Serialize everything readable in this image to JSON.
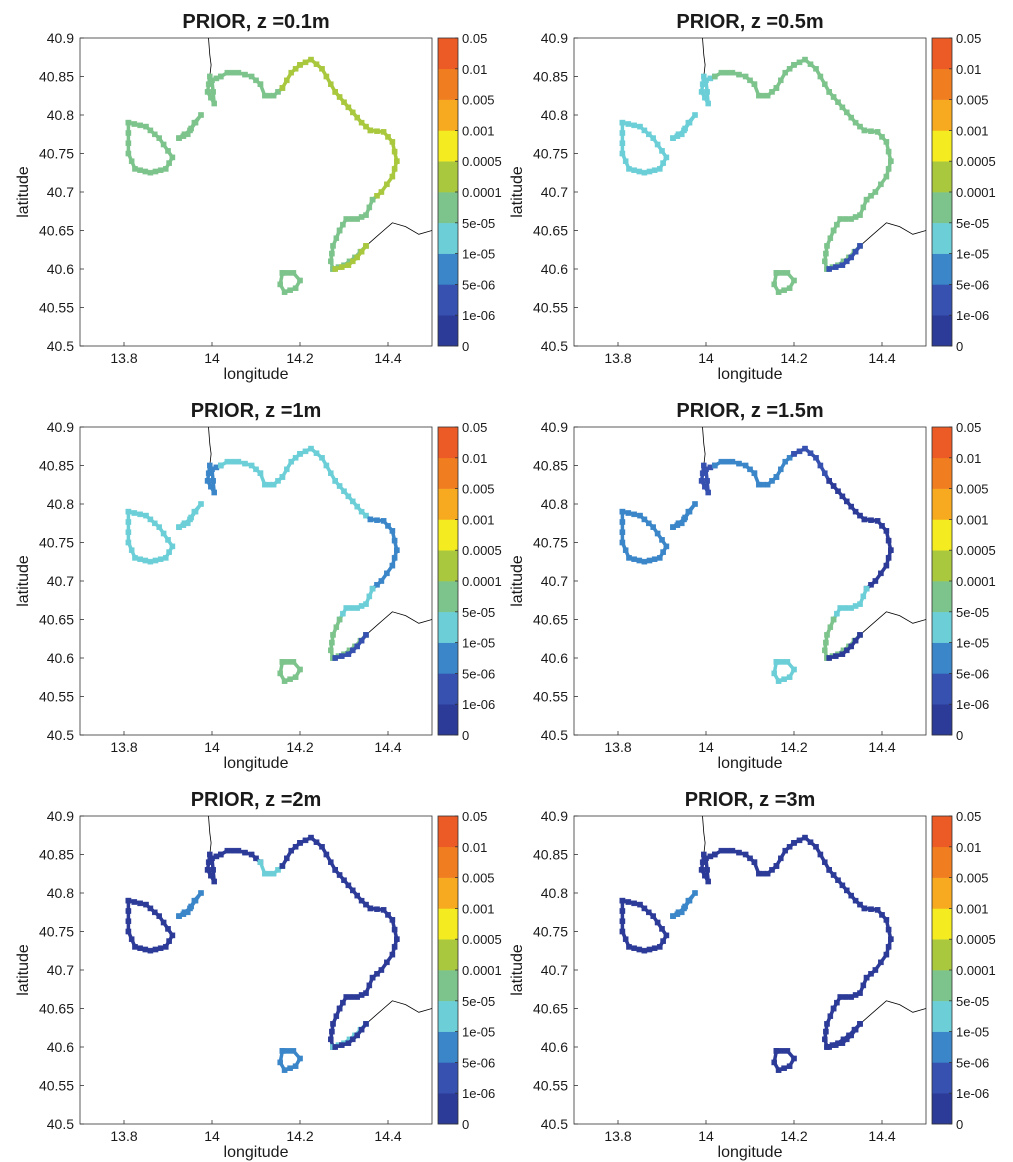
{
  "figure": {
    "colorbar_levels": [
      "0",
      "1e-06",
      "5e-06",
      "1e-05",
      "5e-05",
      "0.0001",
      "0.0005",
      "0.001",
      "0.005",
      "0.01",
      "0.05"
    ],
    "colorbar_colors": [
      "#2c3a98",
      "#3651b0",
      "#3a86c9",
      "#6ccfd8",
      "#7dc48c",
      "#a9c83e",
      "#f4ec21",
      "#f7a91f",
      "#f07e20",
      "#ec5a26"
    ]
  },
  "chart_data": [
    {
      "type": "scatter",
      "title": "PRIOR, z =0.1m",
      "xlabel": "longitude",
      "ylabel": "latitude",
      "xlim": [
        13.7,
        14.5
      ],
      "ylim": [
        40.5,
        40.9
      ],
      "xticks": [
        "13.8",
        "14",
        "14.2",
        "14.4"
      ],
      "yticks": [
        "40.5",
        "40.55",
        "40.6",
        "40.65",
        "40.7",
        "40.75",
        "40.8",
        "40.85",
        "40.9"
      ],
      "segment_classes": {
        "island": [
          4
        ],
        "mainland": [
          4,
          4,
          4,
          5,
          5,
          5,
          5,
          5,
          4,
          4,
          4,
          5
        ],
        "islet": [
          4
        ],
        "capri": [
          4
        ]
      }
    },
    {
      "type": "scatter",
      "title": "PRIOR, z =0.5m",
      "xlabel": "longitude",
      "ylabel": "latitude",
      "xlim": [
        13.7,
        14.5
      ],
      "ylim": [
        40.5,
        40.9
      ],
      "xticks": [
        "13.8",
        "14",
        "14.2",
        "14.4"
      ],
      "yticks": [
        "40.5",
        "40.55",
        "40.6",
        "40.65",
        "40.7",
        "40.75",
        "40.8",
        "40.85",
        "40.9"
      ],
      "segment_classes": {
        "island": [
          3
        ],
        "mainland": [
          3,
          4,
          4,
          4,
          4,
          4,
          4,
          4,
          4,
          4,
          4,
          1
        ],
        "islet": [
          3
        ],
        "capri": [
          4
        ]
      }
    },
    {
      "type": "scatter",
      "title": "PRIOR, z =1m",
      "xlabel": "longitude",
      "ylabel": "latitude",
      "xlim": [
        13.7,
        14.5
      ],
      "ylim": [
        40.5,
        40.9
      ],
      "xticks": [
        "13.8",
        "14",
        "14.2",
        "14.4"
      ],
      "yticks": [
        "40.5",
        "40.55",
        "40.6",
        "40.65",
        "40.7",
        "40.75",
        "40.8",
        "40.85",
        "40.9"
      ],
      "segment_classes": {
        "island": [
          3
        ],
        "mainland": [
          2,
          3,
          3,
          3,
          3,
          3,
          2,
          2,
          3,
          4,
          4,
          1
        ],
        "islet": [
          3
        ],
        "capri": [
          4
        ]
      }
    },
    {
      "type": "scatter",
      "title": "PRIOR, z =1.5m",
      "xlabel": "longitude",
      "ylabel": "latitude",
      "xlim": [
        13.7,
        14.5
      ],
      "ylim": [
        40.5,
        40.9
      ],
      "xticks": [
        "13.8",
        "14",
        "14.2",
        "14.4"
      ],
      "yticks": [
        "40.5",
        "40.55",
        "40.6",
        "40.65",
        "40.7",
        "40.75",
        "40.8",
        "40.85",
        "40.9"
      ],
      "segment_classes": {
        "island": [
          2
        ],
        "mainland": [
          1,
          2,
          2,
          2,
          1,
          0,
          0,
          0,
          3,
          4,
          4,
          0
        ],
        "islet": [
          2
        ],
        "capri": [
          3
        ]
      }
    },
    {
      "type": "scatter",
      "title": "PRIOR, z =2m",
      "xlabel": "longitude",
      "ylabel": "latitude",
      "xlim": [
        13.7,
        14.5
      ],
      "ylim": [
        40.5,
        40.9
      ],
      "xticks": [
        "13.8",
        "14",
        "14.2",
        "14.4"
      ],
      "yticks": [
        "40.5",
        "40.55",
        "40.6",
        "40.65",
        "40.7",
        "40.75",
        "40.8",
        "40.85",
        "40.9"
      ],
      "segment_classes": {
        "island": [
          0
        ],
        "mainland": [
          0,
          0,
          3,
          0,
          0,
          0,
          0,
          0,
          0,
          0,
          3,
          0
        ],
        "islet": [
          2
        ],
        "capri": [
          2
        ]
      }
    },
    {
      "type": "scatter",
      "title": "PRIOR, z =3m",
      "xlabel": "longitude",
      "ylabel": "latitude",
      "xlim": [
        13.7,
        14.5
      ],
      "ylim": [
        40.5,
        40.9
      ],
      "xticks": [
        "13.8",
        "14",
        "14.2",
        "14.4"
      ],
      "yticks": [
        "40.5",
        "40.55",
        "40.6",
        "40.65",
        "40.7",
        "40.75",
        "40.8",
        "40.85",
        "40.9"
      ],
      "segment_classes": {
        "island": [
          0
        ],
        "mainland": [
          0,
          0,
          0,
          0,
          0,
          0,
          0,
          0,
          0,
          0,
          0,
          0
        ],
        "islet": [
          2
        ],
        "capri": [
          0
        ]
      }
    }
  ]
}
